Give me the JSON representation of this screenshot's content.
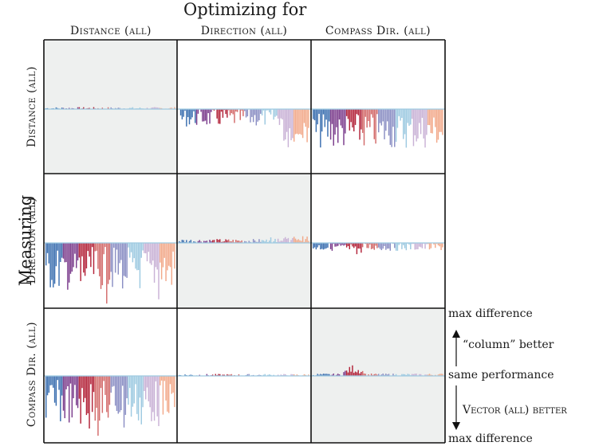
{
  "figure": {
    "top_title": "Optimizing for",
    "side_title": "Measuring",
    "columns": [
      "Distance (all)",
      "Direction (all)",
      "Compass Dir. (all)"
    ],
    "rows": [
      "Distance (all)",
      "Direction (all)",
      "Compass Dir. (all)"
    ],
    "legend": {
      "top": "max difference",
      "upper": "“column” better",
      "middle": "same performance",
      "lower": "Vector (all) better",
      "bottom": "max difference"
    }
  },
  "colors": {
    "diag_bg": "#eef0ef",
    "palette": [
      "#3b6fb0",
      "#7b3c8c",
      "#b3243a",
      "#d36b6b",
      "#8b8fc4",
      "#9ecae1",
      "#c9b2d6",
      "#f2a98a"
    ]
  },
  "chart_data": {
    "type": "bar",
    "layout": "3x3 grid of small-multiple bar charts",
    "xlabel": "",
    "ylabel": "",
    "ylim": [
      -1,
      1
    ],
    "grid": false,
    "panels": [
      {
        "row": 0,
        "col": 0,
        "shaded": true,
        "profile": "tiny_pos"
      },
      {
        "row": 0,
        "col": 1,
        "shaded": false,
        "profile": "medium_neg"
      },
      {
        "row": 0,
        "col": 2,
        "shaded": false,
        "profile": "large_neg"
      },
      {
        "row": 1,
        "col": 0,
        "shaded": false,
        "profile": "huge_neg"
      },
      {
        "row": 1,
        "col": 1,
        "shaded": true,
        "profile": "small_pos"
      },
      {
        "row": 1,
        "col": 2,
        "shaded": false,
        "profile": "small_neg"
      },
      {
        "row": 2,
        "col": 0,
        "shaded": false,
        "profile": "huge_neg"
      },
      {
        "row": 2,
        "col": 1,
        "shaded": false,
        "profile": "tiny_pos"
      },
      {
        "row": 2,
        "col": 2,
        "shaded": true,
        "profile": "small_pos_peak"
      }
    ]
  }
}
